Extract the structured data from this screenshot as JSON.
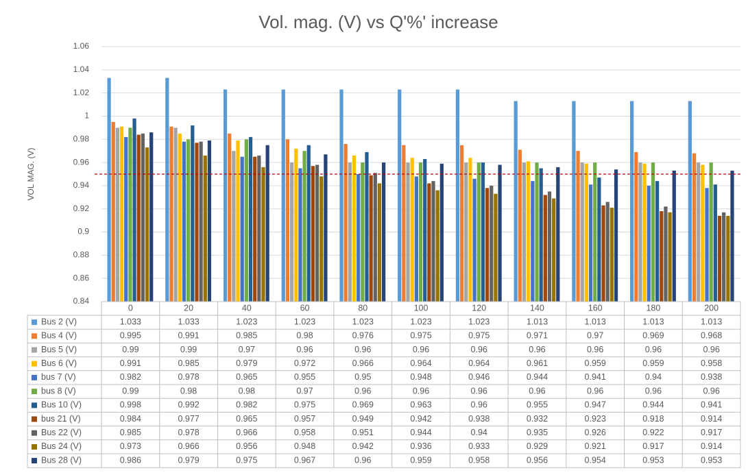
{
  "chart_data": {
    "type": "bar",
    "title": "Vol. mag. (V) vs Q'%' increase",
    "y_label": "VOL MAG. (V)",
    "categories": [
      "0",
      "20",
      "40",
      "60",
      "80",
      "100",
      "120",
      "140",
      "160",
      "180",
      "200"
    ],
    "ylim": [
      0.84,
      1.06
    ],
    "yticks": [
      0.84,
      0.86,
      0.88,
      0.9,
      0.92,
      0.94,
      0.96,
      0.98,
      1,
      1.02,
      1.04,
      1.06
    ],
    "grid": true,
    "reference_line": {
      "value": 0.95,
      "color": "#c00000"
    },
    "series": [
      {
        "name": "Bus 2 (V)",
        "color": "#5b9bd5",
        "values": [
          1.033,
          1.033,
          1.023,
          1.023,
          1.023,
          1.023,
          1.023,
          1.013,
          1.013,
          1.013,
          1.013
        ]
      },
      {
        "name": "Bus 4 (V)",
        "color": "#ed7d31",
        "values": [
          0.995,
          0.991,
          0.985,
          0.98,
          0.976,
          0.975,
          0.975,
          0.971,
          0.97,
          0.969,
          0.968
        ]
      },
      {
        "name": "Bus 5 (V)",
        "color": "#a5a5a5",
        "values": [
          0.99,
          0.99,
          0.97,
          0.96,
          0.96,
          0.96,
          0.96,
          0.96,
          0.96,
          0.96,
          0.96
        ]
      },
      {
        "name": "Bus 6 (V)",
        "color": "#ffc000",
        "values": [
          0.991,
          0.985,
          0.979,
          0.972,
          0.966,
          0.964,
          0.964,
          0.961,
          0.959,
          0.959,
          0.958
        ]
      },
      {
        "name": "bus 7 (V)",
        "color": "#4472c4",
        "values": [
          0.982,
          0.978,
          0.965,
          0.955,
          0.95,
          0.948,
          0.946,
          0.944,
          0.941,
          0.94,
          0.938
        ]
      },
      {
        "name": "bus 8 (V)",
        "color": "#70ad47",
        "values": [
          0.99,
          0.98,
          0.98,
          0.97,
          0.96,
          0.96,
          0.96,
          0.96,
          0.96,
          0.96,
          0.96
        ]
      },
      {
        "name": "Bus 10 (V)",
        "color": "#255e91",
        "values": [
          0.998,
          0.992,
          0.982,
          0.975,
          0.969,
          0.963,
          0.96,
          0.955,
          0.947,
          0.944,
          0.941
        ]
      },
      {
        "name": "bus 21 (V)",
        "color": "#9e480e",
        "values": [
          0.984,
          0.977,
          0.965,
          0.957,
          0.949,
          0.942,
          0.938,
          0.932,
          0.923,
          0.918,
          0.914
        ]
      },
      {
        "name": "Bus 22 (V)",
        "color": "#636363",
        "values": [
          0.985,
          0.978,
          0.966,
          0.958,
          0.951,
          0.944,
          0.94,
          0.935,
          0.926,
          0.922,
          0.917
        ]
      },
      {
        "name": "Bus 24 (V)",
        "color": "#997300",
        "values": [
          0.973,
          0.966,
          0.956,
          0.948,
          0.942,
          0.936,
          0.933,
          0.929,
          0.921,
          0.917,
          0.914
        ]
      },
      {
        "name": "Bus 28 (V)",
        "color": "#264478",
        "values": [
          0.986,
          0.979,
          0.975,
          0.967,
          0.96,
          0.959,
          0.958,
          0.956,
          0.954,
          0.953,
          0.953
        ]
      }
    ]
  }
}
